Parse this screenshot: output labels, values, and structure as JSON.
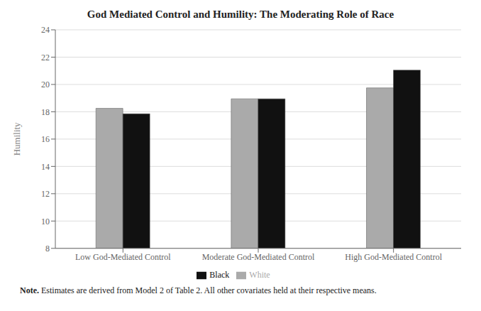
{
  "chart_data": {
    "type": "bar",
    "title": "God Mediated Control and Humility: The Moderating Role of Race",
    "ylabel": "Humility",
    "categories": [
      "Low God-Mediated Control",
      "Moderate God-Mediated Control",
      "High God-Mediated Control"
    ],
    "series": [
      {
        "name": "White",
        "color": "#AAAAAA",
        "values": [
          18.25,
          18.95,
          19.75
        ]
      },
      {
        "name": "Black",
        "color": "#111111",
        "values": [
          17.85,
          18.95,
          21.05
        ]
      }
    ],
    "ylim": [
      8,
      24
    ],
    "yticks": [
      8,
      10,
      12,
      14,
      16,
      18,
      20,
      22,
      24
    ],
    "grid": true,
    "legend": "bottom",
    "annotations": [
      "Note.",
      "Estimates are derived from Model 2 of Table 2. All other covariates held at their respective means."
    ]
  }
}
